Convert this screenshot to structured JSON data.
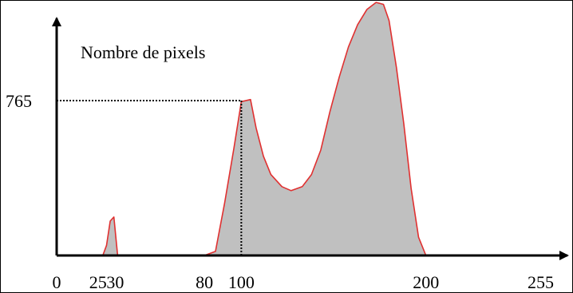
{
  "chart_data": {
    "type": "area",
    "ylabel": "Nombre de pixels",
    "xlabel": "",
    "xlim": [
      0,
      255
    ],
    "x_ticks": [
      {
        "value": 0,
        "label": "0"
      },
      {
        "value": 25,
        "label": "25"
      },
      {
        "value": 30,
        "label": "30"
      },
      {
        "value": 80,
        "label": "80"
      },
      {
        "value": 100,
        "label": "100"
      },
      {
        "value": 200,
        "label": "200"
      },
      {
        "value": 255,
        "label": "255"
      }
    ],
    "y_ticks": [
      {
        "value": 765,
        "label": "765"
      }
    ],
    "guide": {
      "x": 100,
      "y": 765
    },
    "grid": false,
    "legend": "none",
    "fill_color": "#c0c0c0",
    "outline_color": "#e03030",
    "axis_color": "#000000",
    "series": [
      {
        "points": [
          [
            25,
            0
          ],
          [
            27,
            50
          ],
          [
            29,
            170
          ],
          [
            31,
            190
          ],
          [
            33,
            0
          ],
          [
            50,
            0
          ],
          [
            80,
            0
          ],
          [
            86,
            20
          ],
          [
            91,
            260
          ],
          [
            96,
            530
          ],
          [
            100,
            760
          ],
          [
            105,
            770
          ],
          [
            108,
            630
          ],
          [
            112,
            490
          ],
          [
            116,
            400
          ],
          [
            122,
            340
          ],
          [
            127,
            320
          ],
          [
            133,
            340
          ],
          [
            138,
            400
          ],
          [
            143,
            520
          ],
          [
            148,
            710
          ],
          [
            153,
            880
          ],
          [
            158,
            1030
          ],
          [
            163,
            1140
          ],
          [
            168,
            1215
          ],
          [
            173,
            1250
          ],
          [
            177,
            1240
          ],
          [
            180,
            1160
          ],
          [
            184,
            930
          ],
          [
            188,
            650
          ],
          [
            192,
            330
          ],
          [
            196,
            90
          ],
          [
            200,
            0
          ]
        ]
      }
    ]
  }
}
